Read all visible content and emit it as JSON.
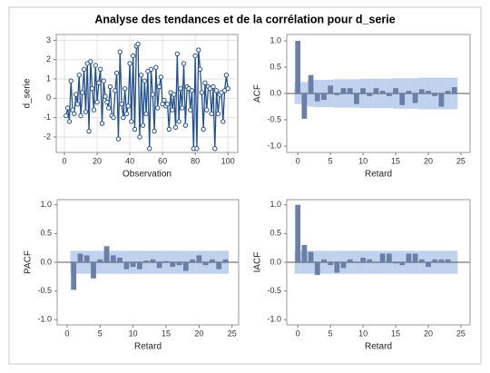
{
  "title": "Analyse des tendances et de la corrélation pour d_serie",
  "chart_data": [
    {
      "type": "line",
      "x_label": "Observation",
      "y_label": "d_serie",
      "x": [
        1,
        2,
        3,
        4,
        5,
        6,
        7,
        8,
        9,
        10,
        11,
        12,
        13,
        14,
        15,
        16,
        17,
        18,
        19,
        20,
        21,
        22,
        23,
        24,
        25,
        26,
        27,
        28,
        29,
        30,
        31,
        32,
        33,
        34,
        35,
        36,
        37,
        38,
        39,
        40,
        41,
        42,
        43,
        44,
        45,
        46,
        47,
        48,
        49,
        50,
        51,
        52,
        53,
        54,
        55,
        56,
        57,
        58,
        59,
        60,
        61,
        62,
        63,
        64,
        65,
        66,
        67,
        68,
        69,
        70,
        71,
        72,
        73,
        74,
        75,
        76,
        77,
        78,
        79,
        80,
        81,
        82,
        83,
        84,
        85,
        86,
        87,
        88,
        89,
        90,
        91,
        92,
        93,
        94,
        95,
        96,
        97,
        98,
        99,
        100
      ],
      "values": [
        -0.9,
        -0.5,
        -1.2,
        0.9,
        -0.6,
        -0.8,
        0.2,
        -0.3,
        1.2,
        -0.9,
        0.3,
        1.5,
        -0.7,
        1.8,
        -1.7,
        1.9,
        0.5,
        -0.6,
        1.7,
        -0.2,
        0.8,
        1.5,
        -1.3,
        0.9,
        0.1,
        -0.2,
        -0.5,
        0.6,
        -0.9,
        -1.0,
        0.4,
        1.3,
        -2.1,
        2.4,
        -0.3,
        -1.0,
        0.5,
        -0.8,
        -0.4,
        1.8,
        -1.2,
        2.2,
        -1.6,
        2.7,
        2.8,
        -2.0,
        1.2,
        -1.4,
        0.9,
        -0.8,
        1.4,
        -2.6,
        1.5,
        0.2,
        -1.7,
        1.6,
        -0.5,
        0.6,
        1.1,
        -0.3,
        -0.1,
        -0.4,
        -0.3,
        -1.6,
        0.3,
        -0.6,
        0.2,
        -1.5,
        2.3,
        -1.2,
        0.5,
        -0.5,
        1.8,
        -1.4,
        0.6,
        0.5,
        -0.6,
        0.4,
        -2.6,
        2.2,
        -2.6,
        2.5,
        1.5,
        0.3,
        -1.6,
        0.8,
        -0.6,
        0.6,
        0.5,
        -0.8,
        0.6,
        -2.6,
        0.4,
        -0.8,
        0.2,
        0.3,
        -1.2,
        0.4,
        1.2,
        0.5
      ],
      "color": "#24508f",
      "grid": true,
      "xlim": [
        -5,
        106
      ],
      "xticks": [
        0,
        20,
        40,
        60,
        80,
        100
      ],
      "ylim": [
        -2.8,
        3.3
      ],
      "yticks": [
        -2,
        -1,
        0,
        1,
        2,
        3
      ]
    },
    {
      "type": "bar",
      "x_label": "Retard",
      "y_label": "ACF",
      "x": [
        0,
        1,
        2,
        3,
        4,
        5,
        6,
        7,
        8,
        9,
        10,
        11,
        12,
        13,
        14,
        15,
        16,
        17,
        18,
        19,
        20,
        21,
        22,
        23,
        24
      ],
      "values": [
        1.0,
        -0.48,
        0.35,
        -0.15,
        -0.12,
        0.15,
        -0.03,
        0.1,
        0.1,
        -0.2,
        0.1,
        -0.05,
        0.1,
        0.05,
        -0.05,
        0.1,
        -0.22,
        0.05,
        -0.18,
        0.08,
        0.05,
        -0.05,
        -0.25,
        0.05,
        0.12
      ],
      "limits": [
        0.2,
        0.22,
        0.25,
        0.26,
        0.26,
        0.26,
        0.27,
        0.27,
        0.27,
        0.27,
        0.28,
        0.28,
        0.28,
        0.28,
        0.28,
        0.29,
        0.29,
        0.29,
        0.29,
        0.3,
        0.3,
        0.3,
        0.3,
        0.3,
        0.3
      ],
      "color": "#6a7ea6",
      "band_color": "#a9c2e6",
      "grid": false,
      "xlim": [
        -1.7,
        26.4
      ],
      "xticks": [
        0,
        5,
        10,
        15,
        20,
        25
      ],
      "ylim": [
        -1.12,
        1.12
      ],
      "yticks": [
        {
          "value": -1,
          "label": "-1.0"
        },
        -0.5,
        {
          "value": 0,
          "label": "0.0"
        },
        0.5,
        {
          "value": 1,
          "label": "1.0"
        }
      ]
    },
    {
      "type": "bar",
      "x_label": "Retard",
      "y_label": "PACF",
      "x": [
        1,
        2,
        3,
        4,
        5,
        6,
        7,
        8,
        9,
        10,
        11,
        12,
        13,
        14,
        15,
        16,
        17,
        18,
        19,
        20,
        21,
        22,
        23,
        24
      ],
      "values": [
        -0.48,
        0.15,
        0.12,
        -0.28,
        0.05,
        0.28,
        0.12,
        0.08,
        -0.12,
        -0.08,
        -0.12,
        0.03,
        0.05,
        -0.1,
        0.02,
        -0.08,
        -0.05,
        -0.15,
        0.05,
        0.12,
        -0.05,
        0.05,
        -0.12,
        0.05
      ],
      "limits": [
        0.2,
        0.2,
        0.2,
        0.2,
        0.2,
        0.2,
        0.2,
        0.2,
        0.2,
        0.2,
        0.2,
        0.2,
        0.2,
        0.2,
        0.2,
        0.2,
        0.2,
        0.2,
        0.2,
        0.2,
        0.2,
        0.2,
        0.2,
        0.2
      ],
      "color": "#6a7ea6",
      "band_color": "#a9c2e6",
      "grid": false,
      "xlim": [
        -1.5,
        26
      ],
      "xticks": [
        0,
        5,
        10,
        15,
        20,
        25
      ],
      "ylim": [
        -1.09,
        1.09
      ],
      "yticks": [
        {
          "value": -1,
          "label": "-1.0"
        },
        -0.5,
        {
          "value": 0,
          "label": "0.0"
        },
        0.5,
        {
          "value": 1,
          "label": "1.0"
        }
      ]
    },
    {
      "type": "bar",
      "x_label": "Retard",
      "y_label": "IACF",
      "x": [
        0,
        1,
        2,
        3,
        4,
        5,
        6,
        7,
        8,
        9,
        10,
        11,
        12,
        13,
        14,
        15,
        16,
        17,
        18,
        19,
        20,
        21,
        22,
        23,
        24
      ],
      "values": [
        1.0,
        0.3,
        0.18,
        -0.22,
        0.05,
        -0.05,
        -0.18,
        -0.1,
        0.05,
        0.0,
        0.08,
        0.05,
        0.0,
        0.15,
        0.15,
        -0.02,
        -0.05,
        0.15,
        0.15,
        0.05,
        -0.08,
        0.05,
        0.05,
        0.05,
        0.0
      ],
      "limits": [
        0.2,
        0.2,
        0.2,
        0.2,
        0.2,
        0.2,
        0.2,
        0.2,
        0.2,
        0.2,
        0.2,
        0.2,
        0.2,
        0.2,
        0.2,
        0.2,
        0.2,
        0.2,
        0.2,
        0.2,
        0.2,
        0.2,
        0.2,
        0.2,
        0.2
      ],
      "color": "#6a7ea6",
      "band_color": "#a9c2e6",
      "grid": false,
      "xlim": [
        -1.7,
        26.4
      ],
      "xticks": [
        0,
        5,
        10,
        15,
        20,
        25
      ],
      "ylim": [
        -1.09,
        1.09
      ],
      "yticks": [
        {
          "value": -1,
          "label": "-1.0"
        },
        -0.5,
        {
          "value": 0,
          "label": "0.0"
        },
        0.5,
        {
          "value": 1,
          "label": "1.0"
        }
      ]
    }
  ]
}
